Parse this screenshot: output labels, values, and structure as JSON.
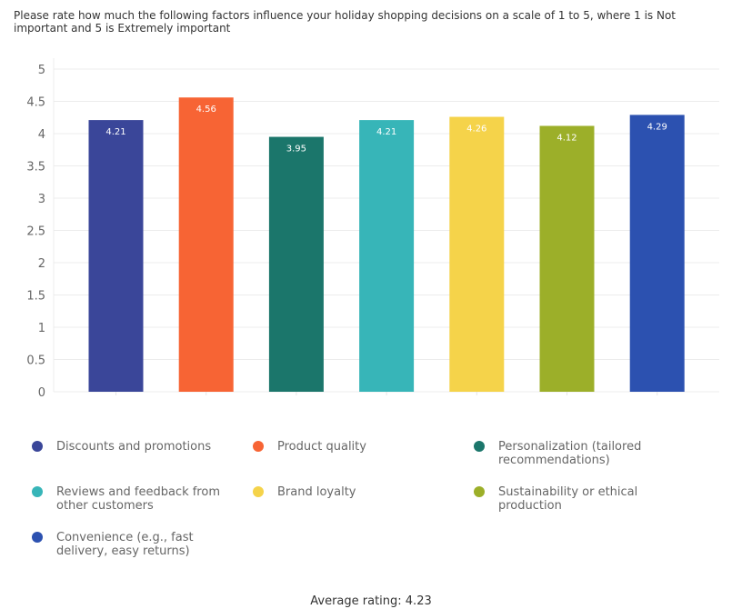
{
  "title": "Please rate how much the following factors influence your holiday shopping decisions on a scale of 1 to 5, where 1 is Not important and 5 is Extremely important",
  "footer": {
    "average_label": "Average rating: 4.23"
  },
  "chart_data": {
    "type": "bar",
    "title": "Please rate how much the following factors influence your holiday shopping decisions on a scale of 1 to 5, where 1 is Not important and 5 is Extremely important",
    "xlabel": "",
    "ylabel": "",
    "ylim": [
      0,
      5
    ],
    "yticks": [
      0,
      0.5,
      1,
      1.5,
      2,
      2.5,
      3,
      3.5,
      4,
      4.5,
      5
    ],
    "ytick_labels": [
      "0",
      "0.5",
      "1",
      "1.5",
      "2",
      "2.5",
      "3",
      "3.5",
      "4",
      "4.5",
      "5"
    ],
    "grid": true,
    "legend_position": "bottom",
    "categories": [
      "Discounts and promotions",
      "Product quality",
      "Personalization (tailored recommendations)",
      "Reviews and feedback from other customers",
      "Brand loyalty",
      "Sustainability or ethical production",
      "Convenience (e.g., fast delivery, easy returns)"
    ],
    "values": [
      4.21,
      4.56,
      3.95,
      4.21,
      4.26,
      4.12,
      4.29
    ],
    "data_labels": [
      "4.21",
      "4.56",
      "3.95",
      "4.21",
      "4.26",
      "4.12",
      "4.29"
    ],
    "colors": [
      "#3a4699",
      "#f76434",
      "#1b766b",
      "#37b5b8",
      "#f5d34a",
      "#9caf29",
      "#2c51b0"
    ]
  }
}
